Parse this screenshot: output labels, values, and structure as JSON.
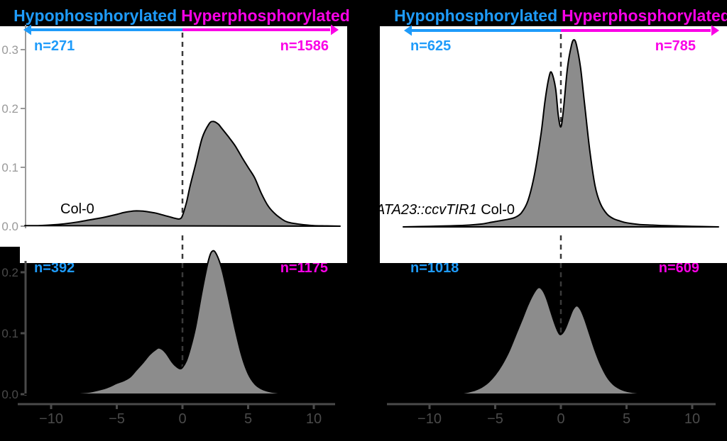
{
  "colors": {
    "page_bg": "#000000",
    "panel_bg": "#FFFFFF",
    "hypo": "#1E9BFA",
    "hyper": "#FA00E6",
    "density_fill": "#8C8C8C",
    "density_stroke": "#000000",
    "axis_light": "#9A9A9A",
    "axis_dark": "#4A4A4A",
    "dashed_line": "#3A3A3A"
  },
  "titles": {
    "hypo": "Hypophosphorylated",
    "hyper": "Hyperphosphorylated"
  },
  "panels": [
    {
      "name": "top-left",
      "genotype": "Col-0",
      "n_hypo": "n=271",
      "n_hyper": "n=1586"
    },
    {
      "name": "top-right",
      "genotype_italic": "ATA23::ccvTIR1",
      "genotype_regular": " Col-0",
      "n_hypo": "n=625",
      "n_hyper": "n=785"
    },
    {
      "name": "bottom-left",
      "n_hypo": "n=392",
      "n_hyper": "n=1175"
    },
    {
      "name": "bottom-right",
      "n_hypo": "n=1018",
      "n_hyper": "n=609"
    }
  ],
  "chart_data": [
    {
      "type": "area",
      "subtype": "density",
      "annotation": "Col-0",
      "n_hypophosphorylated": 271,
      "n_hyperphosphorylated": 1586,
      "vline_x": 0,
      "xlim": [
        -12.5,
        12.5
      ],
      "x_ticks": [
        -10,
        -5,
        0,
        5,
        10
      ],
      "x_tick_labels": [
        "−10",
        "−5",
        "0",
        "5",
        "10"
      ],
      "x_ticks_shown": false,
      "y_ticks": [
        0,
        0.1,
        0.2,
        0.3
      ],
      "y_tick_labels": [
        "0.0",
        "0.1",
        "0.2",
        "0.3"
      ],
      "y_ticks_shown": true,
      "x": [
        -12,
        -11,
        -10,
        -9,
        -8,
        -7,
        -6,
        -5,
        -4.5,
        -4,
        -3.5,
        -3,
        -2.5,
        -2,
        -1.5,
        -1,
        -0.5,
        -0.2,
        0,
        0.3,
        0.6,
        1,
        1.5,
        2,
        2.3,
        2.7,
        3,
        3.5,
        4,
        4.5,
        5,
        5.5,
        6,
        6.5,
        7,
        7.5,
        8,
        9,
        10,
        11,
        12
      ],
      "density": [
        0.001,
        0.001,
        0.002,
        0.004,
        0.007,
        0.011,
        0.015,
        0.02,
        0.023,
        0.025,
        0.026,
        0.0255,
        0.024,
        0.022,
        0.019,
        0.016,
        0.013,
        0.0125,
        0.018,
        0.04,
        0.07,
        0.105,
        0.15,
        0.173,
        0.178,
        0.174,
        0.166,
        0.152,
        0.137,
        0.118,
        0.1,
        0.082,
        0.056,
        0.035,
        0.022,
        0.013,
        0.007,
        0.003,
        0.001,
        0.0005,
        0
      ]
    },
    {
      "type": "area",
      "subtype": "density",
      "annotation": "ATA23::ccvTIR1 Col-0",
      "n_hypophosphorylated": 625,
      "n_hyperphosphorylated": 785,
      "vline_x": 0,
      "xlim": [
        -12.5,
        12.5
      ],
      "x_ticks": [
        -10,
        -5,
        0,
        5,
        10
      ],
      "x_tick_labels": [
        "−10",
        "−5",
        "0",
        "5",
        "10"
      ],
      "x_ticks_shown": false,
      "y_ticks": [],
      "y_tick_labels": [],
      "y_ticks_shown": false,
      "x": [
        -12,
        -10,
        -8,
        -7,
        -6,
        -5.5,
        -5,
        -4.5,
        -4,
        -3.5,
        -3,
        -2.5,
        -2,
        -1.5,
        -1.2,
        -0.9,
        -0.7,
        -0.4,
        -0.2,
        0,
        0.2,
        0.5,
        0.8,
        1,
        1.2,
        1.5,
        1.8,
        2.2,
        2.6,
        3,
        3.5,
        4,
        4.5,
        5,
        6,
        7,
        8,
        10,
        12
      ],
      "density": [
        0,
        0.001,
        0.002,
        0.003,
        0.005,
        0.007,
        0.009,
        0.011,
        0.013,
        0.016,
        0.024,
        0.045,
        0.09,
        0.16,
        0.215,
        0.255,
        0.262,
        0.235,
        0.19,
        0.17,
        0.2,
        0.27,
        0.308,
        0.318,
        0.308,
        0.27,
        0.21,
        0.13,
        0.07,
        0.04,
        0.022,
        0.014,
        0.01,
        0.007,
        0.004,
        0.003,
        0.002,
        0.001,
        0
      ]
    },
    {
      "type": "area",
      "subtype": "density",
      "annotation": "",
      "n_hypophosphorylated": 392,
      "n_hyperphosphorylated": 1175,
      "vline_x": 0,
      "xlim": [
        -12.5,
        12.5
      ],
      "x_ticks": [
        -10,
        -5,
        0,
        5,
        10
      ],
      "x_tick_labels": [
        "−10",
        "−5",
        "0",
        "5",
        "10"
      ],
      "x_ticks_shown": true,
      "y_ticks": [
        0,
        0.1,
        0.2
      ],
      "y_tick_labels": [
        "0.0",
        "0.1",
        "0.2"
      ],
      "y_ticks_shown": true,
      "x": [
        -12,
        -10,
        -9,
        -8,
        -7,
        -6,
        -5.5,
        -5,
        -4.5,
        -4,
        -3.5,
        -3,
        -2.5,
        -2,
        -1.8,
        -1.5,
        -1.2,
        -0.8,
        -0.5,
        -0.2,
        0,
        0.3,
        0.6,
        1,
        1.5,
        2,
        2.3,
        2.6,
        3,
        3.5,
        4,
        4.5,
        5,
        5.5,
        6,
        6.5,
        7,
        8,
        9
      ],
      "density": [
        0,
        0,
        0.001,
        0.002,
        0.004,
        0.009,
        0.013,
        0.018,
        0.022,
        0.028,
        0.04,
        0.052,
        0.065,
        0.074,
        0.076,
        0.073,
        0.066,
        0.053,
        0.046,
        0.042,
        0.044,
        0.055,
        0.075,
        0.11,
        0.17,
        0.221,
        0.235,
        0.229,
        0.205,
        0.158,
        0.108,
        0.064,
        0.034,
        0.017,
        0.009,
        0.005,
        0.003,
        0.001,
        0
      ]
    },
    {
      "type": "area",
      "subtype": "density",
      "annotation": "",
      "n_hypophosphorylated": 1018,
      "n_hyperphosphorylated": 609,
      "vline_x": 0,
      "xlim": [
        -12.5,
        12.5
      ],
      "x_ticks": [
        -10,
        -5,
        0,
        5,
        10
      ],
      "x_tick_labels": [
        "−10",
        "−5",
        "0",
        "5",
        "10"
      ],
      "x_ticks_shown": true,
      "y_ticks": [],
      "y_tick_labels": [],
      "y_ticks_shown": false,
      "x": [
        -12,
        -9,
        -8,
        -7.5,
        -7,
        -6.5,
        -6,
        -5.5,
        -5,
        -4.5,
        -4,
        -3.5,
        -3,
        -2.5,
        -2,
        -1.7,
        -1.4,
        -1.1,
        -0.8,
        -0.5,
        -0.2,
        0,
        0.3,
        0.6,
        0.9,
        1.2,
        1.5,
        1.8,
        2.2,
        2.6,
        3,
        3.5,
        4,
        4.5,
        5,
        5.5,
        6,
        7,
        8
      ],
      "density": [
        0,
        0,
        0.001,
        0.002,
        0.004,
        0.007,
        0.012,
        0.02,
        0.032,
        0.048,
        0.068,
        0.094,
        0.12,
        0.147,
        0.168,
        0.175,
        0.171,
        0.158,
        0.138,
        0.118,
        0.102,
        0.098,
        0.106,
        0.122,
        0.138,
        0.145,
        0.139,
        0.124,
        0.098,
        0.072,
        0.05,
        0.029,
        0.016,
        0.009,
        0.005,
        0.003,
        0.002,
        0.001,
        0
      ]
    }
  ]
}
